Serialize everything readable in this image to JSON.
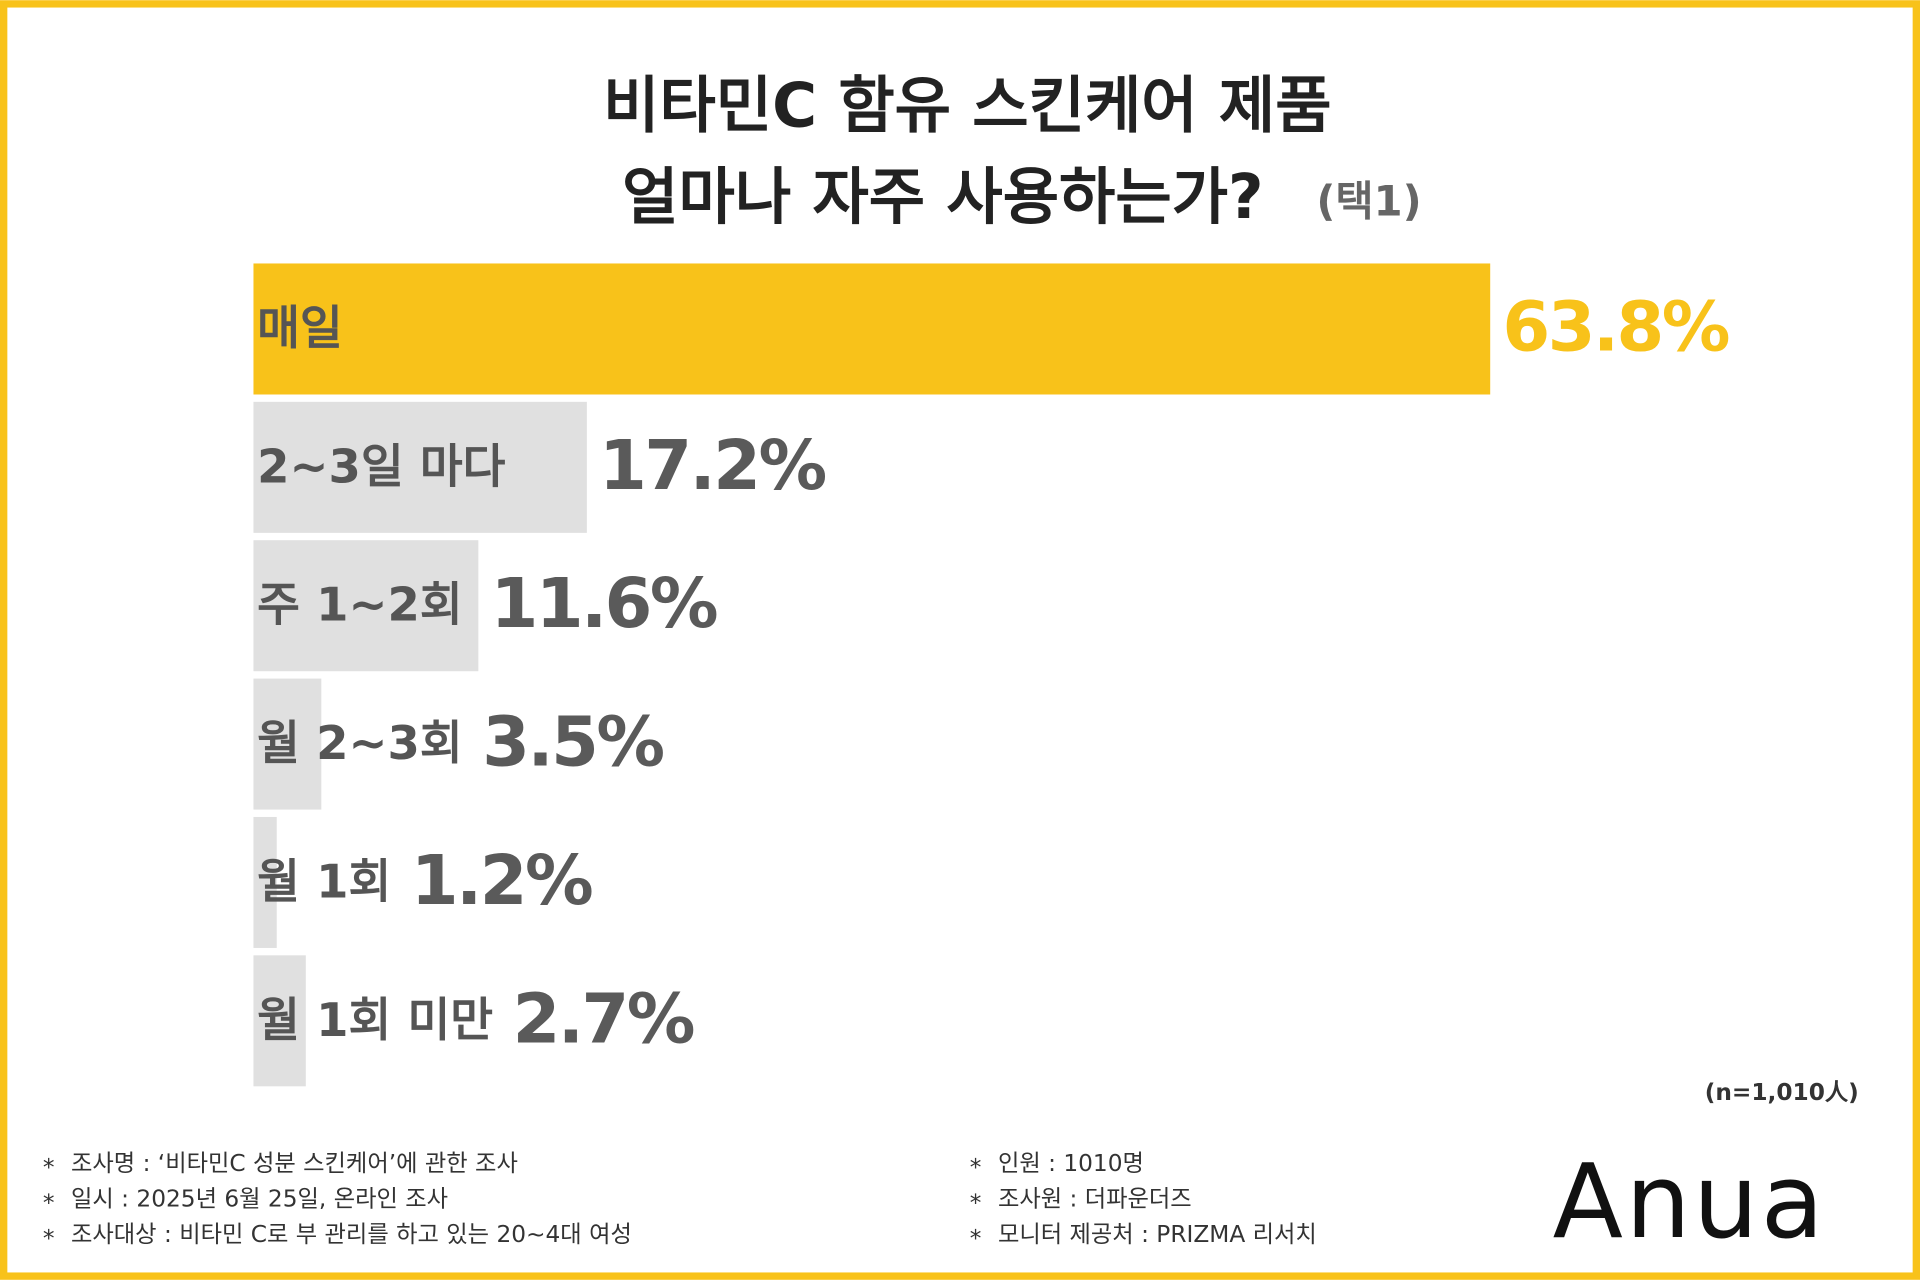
{
  "chart_data": {
    "type": "bar",
    "orientation": "horizontal",
    "title": "비타민C 함유 스킨케어 제품",
    "title_line2": "얼마나 자주 사용하는가?",
    "subtitle": "(택1)",
    "categories": [
      "매일",
      "2~3일 마다",
      "주 1~2회",
      "월 2~3회",
      "월 1회",
      "월 1회 미만"
    ],
    "values": [
      63.8,
      17.2,
      11.6,
      3.5,
      1.2,
      2.7
    ],
    "value_labels": [
      "63.8%",
      "17.2%",
      "11.6%",
      "3.5%",
      "1.2%",
      "2.7%"
    ],
    "colors": [
      "#f8c21a",
      "#e0e0e0",
      "#e0e0e0",
      "#e0e0e0",
      "#e0e0e0",
      "#e0e0e0"
    ],
    "sample_note": "(n=1,010人)",
    "bullet": "*",
    "notes_left": [
      "조사명 : ‘비타민C 성분 스킨케어’에 관한 조사",
      "일시 :  2025년 6월 25일, 온라인 조사",
      "조사대상 : 비타민 C로 부 관리를 하고 있는 20~4대 여성"
    ],
    "notes_right": [
      "인원 : 1010명",
      "조사원 : 더파운더즈",
      "모니터 제공처 : PRIZMA 리서치"
    ],
    "brand": "Anua"
  }
}
